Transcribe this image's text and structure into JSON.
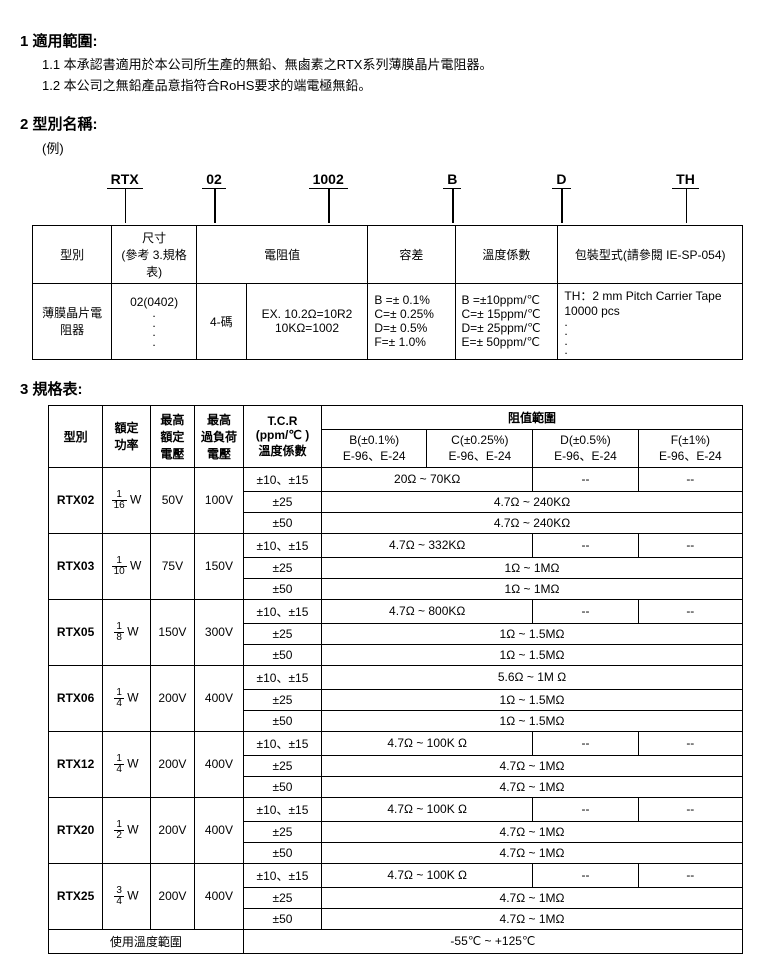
{
  "sec1": {
    "title": "1 適用範圍:",
    "l1": "1.1 本承認書適用於本公司所生產的無鉛、無鹵素之RTX系列薄膜晶片電阻器。",
    "l2": "1.2 本公司之無鉛產品意指符合RoHS要求的端電極無鉛。"
  },
  "sec2": {
    "title": "2 型別名稱:",
    "example": "(例)",
    "parts": [
      "RTX",
      "02",
      "1002",
      "B",
      "D",
      "TH"
    ],
    "headers": [
      "型別",
      "尺寸\n(參考 3.規格表)",
      "電阻值",
      "容差",
      "溫度係數",
      "包裝型式(請參閱 IE-SP-054)"
    ],
    "row_type": "薄膜晶片電阻器",
    "row_size": "02(0402)",
    "row_code_label": "4-碼",
    "row_code_ex": "EX. 10.2Ω=10R2\n10KΩ=1002",
    "row_tol": "B =± 0.1%\nC=± 0.25%\nD=± 0.5%\nF=± 1.0%",
    "row_tcr": "B =±10ppm/℃\nC=± 15ppm/℃\nD=± 25ppm/℃\nE=± 50ppm/℃",
    "row_pack": "TH：2 mm Pitch Carrier Tape 10000 pcs"
  },
  "sec3": {
    "title": "3 規格表:",
    "h_type": "型別",
    "h_power": "額定\n功率",
    "h_maxv": "最高\n額定\n電壓",
    "h_overv": "最高\n過負荷\n電壓",
    "h_tcr": "T.C.R\n(ppm/℃ )\n溫度係數",
    "h_range": "阻值範圍",
    "h_b": "B(±0.1%)\nE-96、E-24",
    "h_c": "C(±0.25%)\nE-96、E-24",
    "h_d": "D(±0.5%)\nE-96、E-24",
    "h_f": "F(±1%)\nE-96、E-24",
    "rows": [
      {
        "type": "RTX02",
        "num": "1",
        "den": "16",
        "mv": "50V",
        "ov": "100V",
        "r": [
          {
            "tcr": "±10、±15",
            "b": "20Ω ~ 70KΩ",
            "c": "__SPAN_B__",
            "d": "--",
            "f": "--"
          },
          {
            "tcr": "±25",
            "b": "4.7Ω ~ 240KΩ",
            "c": "__SPAN_ALL__"
          },
          {
            "tcr": "±50",
            "b": "4.7Ω ~ 240KΩ",
            "c": "__SPAN_ALL__"
          }
        ]
      },
      {
        "type": "RTX03",
        "num": "1",
        "den": "10",
        "mv": "75V",
        "ov": "150V",
        "r": [
          {
            "tcr": "±10、±15",
            "b": "4.7Ω ~ 332KΩ",
            "c": "__SPAN_B__",
            "d": "--",
            "f": "--"
          },
          {
            "tcr": "±25",
            "b": "1Ω ~ 1MΩ",
            "c": "__SPAN_ALL__"
          },
          {
            "tcr": "±50",
            "b": "1Ω ~ 1MΩ",
            "c": "__SPAN_ALL__"
          }
        ]
      },
      {
        "type": "RTX05",
        "num": "1",
        "den": "8",
        "mv": "150V",
        "ov": "300V",
        "r": [
          {
            "tcr": "±10、±15",
            "b": "4.7Ω ~ 800KΩ",
            "c": "__SPAN_B__",
            "d": "--",
            "f": "--"
          },
          {
            "tcr": "±25",
            "b": "1Ω ~ 1.5MΩ",
            "c": "__SPAN_ALL__"
          },
          {
            "tcr": "±50",
            "b": "1Ω ~ 1.5MΩ",
            "c": "__SPAN_ALL__"
          }
        ]
      },
      {
        "type": "RTX06",
        "num": "1",
        "den": "4",
        "mv": "200V",
        "ov": "400V",
        "r": [
          {
            "tcr": "±10、±15",
            "b": "5.6Ω ~ 1M Ω",
            "c": "__SPAN_ALL__"
          },
          {
            "tcr": "±25",
            "b": "1Ω ~ 1.5MΩ",
            "c": "__SPAN_ALL__"
          },
          {
            "tcr": "±50",
            "b": "1Ω ~ 1.5MΩ",
            "c": "__SPAN_ALL__"
          }
        ]
      },
      {
        "type": "RTX12",
        "num": "1",
        "den": "4",
        "mv": "200V",
        "ov": "400V",
        "r": [
          {
            "tcr": "±10、±15",
            "b": "4.7Ω ~ 100K Ω",
            "c": "__SPAN_B__",
            "d": "--",
            "f": "--"
          },
          {
            "tcr": "±25",
            "b": "4.7Ω ~ 1MΩ",
            "c": "__SPAN_ALL__"
          },
          {
            "tcr": "±50",
            "b": "4.7Ω ~ 1MΩ",
            "c": "__SPAN_ALL__"
          }
        ]
      },
      {
        "type": "RTX20",
        "num": "1",
        "den": "2",
        "mv": "200V",
        "ov": "400V",
        "r": [
          {
            "tcr": "±10、±15",
            "b": "4.7Ω ~ 100K Ω",
            "c": "__SPAN_B__",
            "d": "--",
            "f": "--"
          },
          {
            "tcr": "±25",
            "b": "4.7Ω ~ 1MΩ",
            "c": "__SPAN_ALL__"
          },
          {
            "tcr": "±50",
            "b": "4.7Ω ~ 1MΩ",
            "c": "__SPAN_ALL__"
          }
        ]
      },
      {
        "type": "RTX25",
        "num": "3",
        "den": "4",
        "mv": "200V",
        "ov": "400V",
        "r": [
          {
            "tcr": "±10、±15",
            "b": "4.7Ω ~ 100K Ω",
            "c": "__SPAN_B__",
            "d": "--",
            "f": "--"
          },
          {
            "tcr": "±25",
            "b": "4.7Ω ~ 1MΩ",
            "c": "__SPAN_ALL__"
          },
          {
            "tcr": "±50",
            "b": "4.7Ω ~ 1MΩ",
            "c": "__SPAN_ALL__"
          }
        ]
      }
    ],
    "footer_label": "使用溫度範圍",
    "footer_val": "-55℃ ~ +125℃"
  },
  "layout": {
    "pn_widths": [
      90,
      90,
      140,
      110,
      110,
      140
    ],
    "t1_col_widths": [
      90,
      90,
      55,
      130,
      95,
      110,
      210
    ],
    "t3_col_widths": [
      55,
      50,
      45,
      50,
      80,
      110,
      110,
      110,
      110
    ]
  }
}
